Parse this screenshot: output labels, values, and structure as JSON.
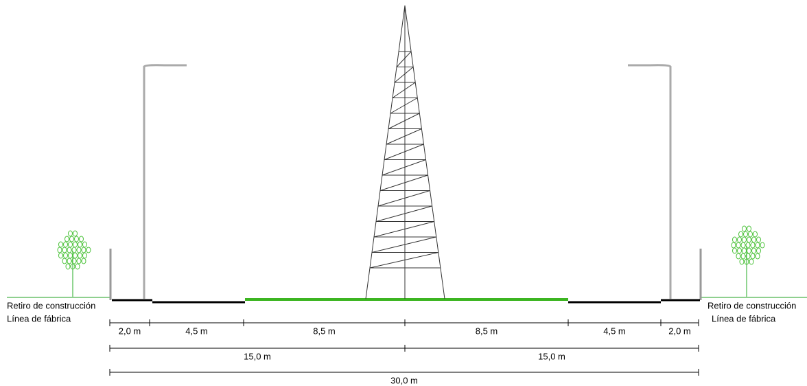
{
  "labels": {
    "left": [
      "Retiro de construcción",
      "Línea de fábrica"
    ],
    "right": [
      "Retiro de construcción",
      "Línea de fábrica"
    ]
  },
  "dimensions": {
    "sections": [
      "2,0 m",
      "4,5 m",
      "8,5 m",
      "8,5 m",
      "4,5 m",
      "2,0 m"
    ],
    "halves": [
      "15,0 m",
      "15,0 m"
    ],
    "total": "30,0 m"
  }
}
